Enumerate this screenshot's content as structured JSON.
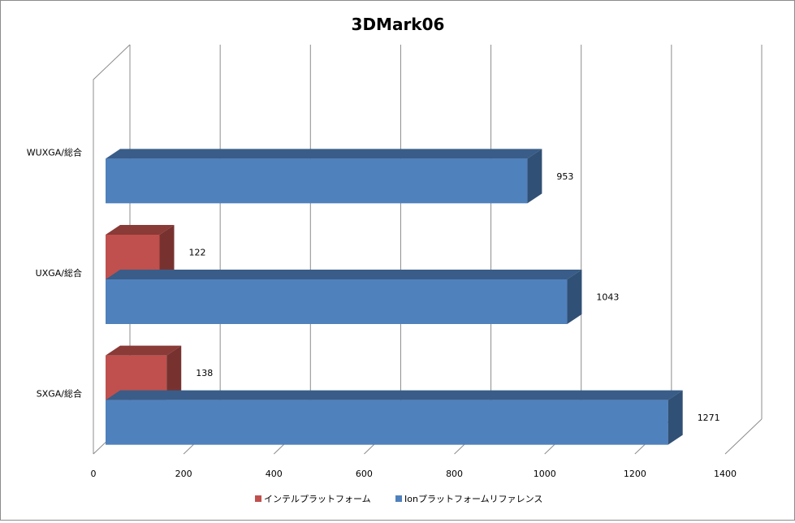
{
  "chart_data": {
    "type": "bar",
    "orientation": "horizontal",
    "style": "3d-clustered",
    "title": "3DMark06",
    "categories": [
      "WUXGA/総合",
      "UXGA/総合",
      "SXGA/総合"
    ],
    "series": [
      {
        "name": "インテルプラットフォーム",
        "color": "#c0504d",
        "values": [
          null,
          122,
          138
        ]
      },
      {
        "name": "Ionプラットフォームリファレンス",
        "color": "#4f81bd",
        "values": [
          953,
          1043,
          1271
        ]
      }
    ],
    "x_ticks": [
      "0",
      "200",
      "400",
      "600",
      "800",
      "1000",
      "1200",
      "1400"
    ],
    "xlim": [
      0,
      1400
    ],
    "grid": true,
    "legend_position": "bottom"
  }
}
